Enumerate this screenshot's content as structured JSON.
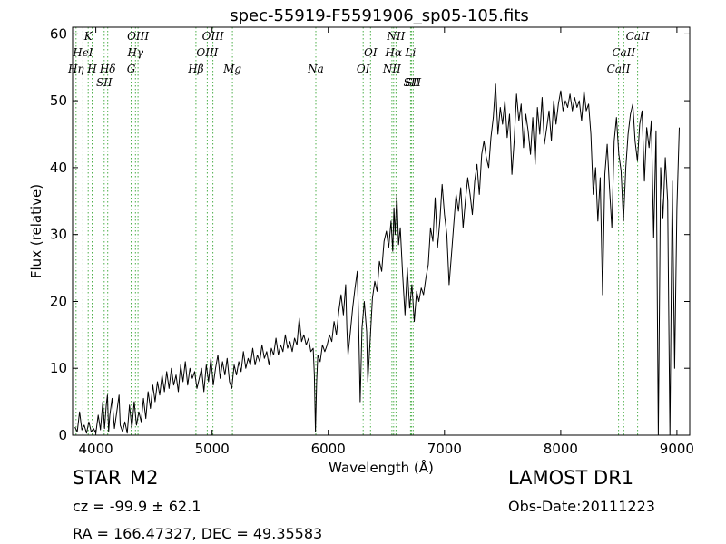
{
  "chart_data": {
    "type": "line",
    "title": "spec-55919-F5591906_sp05-105.fits",
    "xlabel": "Wavelength (Å)",
    "ylabel": "Flux (relative)",
    "xlim": [
      3800,
      9110
    ],
    "ylim": [
      0,
      61
    ],
    "x_ticks": [
      4000,
      5000,
      6000,
      7000,
      8000,
      9000
    ],
    "y_ticks": [
      0,
      10,
      20,
      30,
      40,
      50,
      60
    ],
    "grid": false,
    "series": [
      {
        "points": [
          [
            3820,
            1.2
          ],
          [
            3840,
            0.5
          ],
          [
            3860,
            3.5
          ],
          [
            3880,
            0.8
          ],
          [
            3900,
            1.5
          ],
          [
            3920,
            0.3
          ],
          [
            3940,
            2.0
          ],
          [
            3960,
            0.5
          ],
          [
            3980,
            1.0
          ],
          [
            4000,
            0.3
          ],
          [
            4020,
            3.0
          ],
          [
            4040,
            0.8
          ],
          [
            4060,
            5.0
          ],
          [
            4075,
            1.0
          ],
          [
            4090,
            4.5
          ],
          [
            4100,
            6.0
          ],
          [
            4110,
            0.5
          ],
          [
            4120,
            3.0
          ],
          [
            4140,
            5.5
          ],
          [
            4160,
            1.0
          ],
          [
            4180,
            3.5
          ],
          [
            4200,
            6.0
          ],
          [
            4210,
            1.5
          ],
          [
            4230,
            0.5
          ],
          [
            4250,
            2.0
          ],
          [
            4270,
            0.3
          ],
          [
            4290,
            4.5
          ],
          [
            4310,
            1.0
          ],
          [
            4330,
            5.0
          ],
          [
            4350,
            1.5
          ],
          [
            4370,
            3.5
          ],
          [
            4390,
            2.0
          ],
          [
            4410,
            5.5
          ],
          [
            4430,
            2.5
          ],
          [
            4450,
            6.5
          ],
          [
            4470,
            4.0
          ],
          [
            4490,
            7.5
          ],
          [
            4510,
            5.0
          ],
          [
            4530,
            8.0
          ],
          [
            4550,
            6.0
          ],
          [
            4570,
            9.0
          ],
          [
            4590,
            6.5
          ],
          [
            4610,
            9.5
          ],
          [
            4630,
            7.0
          ],
          [
            4650,
            10.0
          ],
          [
            4670,
            7.5
          ],
          [
            4690,
            9.0
          ],
          [
            4710,
            6.5
          ],
          [
            4730,
            10.5
          ],
          [
            4750,
            8.0
          ],
          [
            4770,
            11.0
          ],
          [
            4790,
            7.5
          ],
          [
            4810,
            10.0
          ],
          [
            4830,
            8.5
          ],
          [
            4850,
            9.5
          ],
          [
            4870,
            7.0
          ],
          [
            4890,
            8.5
          ],
          [
            4910,
            10.0
          ],
          [
            4930,
            6.5
          ],
          [
            4950,
            10.5
          ],
          [
            4970,
            8.0
          ],
          [
            4990,
            11.5
          ],
          [
            5010,
            7.5
          ],
          [
            5030,
            10.0
          ],
          [
            5050,
            12.0
          ],
          [
            5070,
            8.5
          ],
          [
            5090,
            11.0
          ],
          [
            5110,
            9.0
          ],
          [
            5130,
            11.5
          ],
          [
            5150,
            8.0
          ],
          [
            5170,
            7.0
          ],
          [
            5190,
            10.5
          ],
          [
            5210,
            9.0
          ],
          [
            5230,
            11.0
          ],
          [
            5250,
            9.5
          ],
          [
            5270,
            12.5
          ],
          [
            5290,
            10.0
          ],
          [
            5310,
            11.5
          ],
          [
            5330,
            10.5
          ],
          [
            5350,
            13.0
          ],
          [
            5370,
            10.5
          ],
          [
            5390,
            12.0
          ],
          [
            5410,
            11.0
          ],
          [
            5430,
            13.5
          ],
          [
            5450,
            11.5
          ],
          [
            5470,
            12.5
          ],
          [
            5490,
            10.5
          ],
          [
            5510,
            13.0
          ],
          [
            5530,
            12.0
          ],
          [
            5550,
            14.5
          ],
          [
            5570,
            12.0
          ],
          [
            5590,
            13.5
          ],
          [
            5610,
            12.5
          ],
          [
            5630,
            15.0
          ],
          [
            5650,
            13.0
          ],
          [
            5670,
            14.0
          ],
          [
            5690,
            12.5
          ],
          [
            5710,
            14.5
          ],
          [
            5730,
            13.5
          ],
          [
            5750,
            17.5
          ],
          [
            5770,
            14.0
          ],
          [
            5790,
            15.0
          ],
          [
            5810,
            13.5
          ],
          [
            5830,
            14.5
          ],
          [
            5850,
            12.5
          ],
          [
            5870,
            13.0
          ],
          [
            5880,
            9.0
          ],
          [
            5890,
            0.5
          ],
          [
            5900,
            8.0
          ],
          [
            5910,
            12.0
          ],
          [
            5930,
            11.0
          ],
          [
            5950,
            13.5
          ],
          [
            5970,
            12.5
          ],
          [
            5990,
            13.5
          ],
          [
            6010,
            15.0
          ],
          [
            6030,
            14.0
          ],
          [
            6050,
            17.0
          ],
          [
            6070,
            15.0
          ],
          [
            6090,
            18.5
          ],
          [
            6110,
            21.0
          ],
          [
            6130,
            18.0
          ],
          [
            6150,
            22.5
          ],
          [
            6160,
            16.0
          ],
          [
            6170,
            12.0
          ],
          [
            6190,
            15.5
          ],
          [
            6210,
            19.0
          ],
          [
            6230,
            22.0
          ],
          [
            6250,
            24.5
          ],
          [
            6260,
            18.0
          ],
          [
            6275,
            5.0
          ],
          [
            6290,
            16.0
          ],
          [
            6310,
            20.0
          ],
          [
            6330,
            15.5
          ],
          [
            6340,
            8.0
          ],
          [
            6360,
            14.0
          ],
          [
            6380,
            20.5
          ],
          [
            6400,
            23.0
          ],
          [
            6420,
            21.5
          ],
          [
            6440,
            26.0
          ],
          [
            6460,
            24.5
          ],
          [
            6480,
            29.0
          ],
          [
            6500,
            30.5
          ],
          [
            6520,
            28.0
          ],
          [
            6540,
            32.0
          ],
          [
            6555,
            27.5
          ],
          [
            6565,
            34.0
          ],
          [
            6575,
            30.0
          ],
          [
            6590,
            36.0
          ],
          [
            6605,
            28.5
          ],
          [
            6620,
            31.0
          ],
          [
            6640,
            24.0
          ],
          [
            6660,
            18.0
          ],
          [
            6680,
            25.0
          ],
          [
            6700,
            19.0
          ],
          [
            6720,
            22.5
          ],
          [
            6740,
            17.0
          ],
          [
            6760,
            21.5
          ],
          [
            6780,
            20.0
          ],
          [
            6800,
            22.0
          ],
          [
            6820,
            21.0
          ],
          [
            6840,
            23.5
          ],
          [
            6860,
            25.5
          ],
          [
            6880,
            31.0
          ],
          [
            6900,
            29.0
          ],
          [
            6920,
            35.5
          ],
          [
            6940,
            28.0
          ],
          [
            6960,
            32.0
          ],
          [
            6980,
            37.5
          ],
          [
            7000,
            33.0
          ],
          [
            7020,
            30.0
          ],
          [
            7040,
            22.5
          ],
          [
            7060,
            27.0
          ],
          [
            7080,
            31.5
          ],
          [
            7100,
            36.0
          ],
          [
            7120,
            33.5
          ],
          [
            7140,
            37.0
          ],
          [
            7160,
            31.0
          ],
          [
            7180,
            35.0
          ],
          [
            7200,
            38.5
          ],
          [
            7220,
            36.0
          ],
          [
            7240,
            33.0
          ],
          [
            7260,
            38.0
          ],
          [
            7280,
            40.5
          ],
          [
            7300,
            36.0
          ],
          [
            7320,
            42.0
          ],
          [
            7340,
            44.0
          ],
          [
            7360,
            41.5
          ],
          [
            7380,
            40.0
          ],
          [
            7400,
            44.5
          ],
          [
            7420,
            47.5
          ],
          [
            7440,
            52.5
          ],
          [
            7460,
            45.0
          ],
          [
            7480,
            49.0
          ],
          [
            7500,
            46.5
          ],
          [
            7520,
            50.0
          ],
          [
            7540,
            44.5
          ],
          [
            7560,
            48.0
          ],
          [
            7580,
            39.0
          ],
          [
            7600,
            44.0
          ],
          [
            7620,
            51.0
          ],
          [
            7640,
            47.0
          ],
          [
            7660,
            49.5
          ],
          [
            7680,
            43.0
          ],
          [
            7700,
            48.0
          ],
          [
            7720,
            45.5
          ],
          [
            7740,
            42.0
          ],
          [
            7760,
            47.5
          ],
          [
            7780,
            40.5
          ],
          [
            7800,
            49.0
          ],
          [
            7820,
            45.0
          ],
          [
            7840,
            50.5
          ],
          [
            7860,
            43.5
          ],
          [
            7880,
            46.0
          ],
          [
            7900,
            48.5
          ],
          [
            7920,
            44.0
          ],
          [
            7940,
            50.0
          ],
          [
            7960,
            46.5
          ],
          [
            7980,
            49.5
          ],
          [
            8000,
            51.5
          ],
          [
            8020,
            48.5
          ],
          [
            8040,
            50.0
          ],
          [
            8060,
            49.0
          ],
          [
            8080,
            51.0
          ],
          [
            8100,
            48.5
          ],
          [
            8120,
            50.5
          ],
          [
            8140,
            49.0
          ],
          [
            8160,
            50.0
          ],
          [
            8180,
            47.0
          ],
          [
            8200,
            51.5
          ],
          [
            8220,
            48.5
          ],
          [
            8240,
            49.5
          ],
          [
            8260,
            45.0
          ],
          [
            8280,
            36.0
          ],
          [
            8300,
            40.0
          ],
          [
            8320,
            32.0
          ],
          [
            8340,
            38.5
          ],
          [
            8360,
            21.0
          ],
          [
            8380,
            39.0
          ],
          [
            8400,
            43.5
          ],
          [
            8420,
            37.0
          ],
          [
            8440,
            31.0
          ],
          [
            8460,
            44.0
          ],
          [
            8480,
            47.5
          ],
          [
            8500,
            42.0
          ],
          [
            8520,
            39.5
          ],
          [
            8540,
            32.0
          ],
          [
            8560,
            40.0
          ],
          [
            8580,
            45.0
          ],
          [
            8600,
            48.0
          ],
          [
            8620,
            49.5
          ],
          [
            8640,
            44.0
          ],
          [
            8660,
            41.0
          ],
          [
            8680,
            46.5
          ],
          [
            8700,
            48.5
          ],
          [
            8720,
            38.0
          ],
          [
            8740,
            46.0
          ],
          [
            8760,
            43.0
          ],
          [
            8780,
            47.0
          ],
          [
            8800,
            29.5
          ],
          [
            8820,
            45.5
          ],
          [
            8840,
            0.0
          ],
          [
            8860,
            40.0
          ],
          [
            8880,
            32.5
          ],
          [
            8900,
            41.5
          ],
          [
            8920,
            35.0
          ],
          [
            8940,
            0.0
          ],
          [
            8960,
            38.0
          ],
          [
            8980,
            10.0
          ],
          [
            9000,
            34.0
          ],
          [
            9020,
            46.0
          ]
        ]
      }
    ],
    "lines": [
      {
        "wave": 3830,
        "labels": [
          "Hη"
        ]
      },
      {
        "wave": 3889,
        "labels": [
          "HeI"
        ]
      },
      {
        "wave": 3934,
        "labels": [
          "K"
        ]
      },
      {
        "wave": 3968,
        "labels": [
          "H"
        ]
      },
      {
        "wave": 4072,
        "labels": [
          "SII"
        ]
      },
      {
        "wave": 4102,
        "labels": [
          "Hδ"
        ]
      },
      {
        "wave": 4304,
        "labels": [
          "G"
        ]
      },
      {
        "wave": 4341,
        "labels": [
          "Hγ"
        ]
      },
      {
        "wave": 4363,
        "labels": [
          "OIII"
        ]
      },
      {
        "wave": 4861,
        "labels": [
          "Hβ"
        ]
      },
      {
        "wave": 4959,
        "labels": [
          "OIII"
        ]
      },
      {
        "wave": 5007,
        "labels": [
          "OIII"
        ]
      },
      {
        "wave": 5175,
        "labels": [
          "Mg"
        ]
      },
      {
        "wave": 5893,
        "labels": [
          "Na"
        ]
      },
      {
        "wave": 6300,
        "labels": [
          "OI"
        ]
      },
      {
        "wave": 6364,
        "labels": [
          "OI"
        ]
      },
      {
        "wave": 6548,
        "labels": [
          "NII"
        ]
      },
      {
        "wave": 6563,
        "labels": [
          "Hα"
        ]
      },
      {
        "wave": 6583,
        "labels": [
          "NII"
        ]
      },
      {
        "wave": 6708,
        "labels": [
          "Li"
        ]
      },
      {
        "wave": 6716,
        "labels": [
          "SII"
        ]
      },
      {
        "wave": 6731,
        "labels": [
          "SII"
        ]
      },
      {
        "wave": 8498,
        "labels": [
          "CaII"
        ]
      },
      {
        "wave": 8542,
        "labels": [
          "CaII"
        ]
      },
      {
        "wave": 8662,
        "labels": [
          "CaII"
        ]
      }
    ],
    "line_color": "#000000",
    "marker_color": "#4daf4a"
  },
  "info": {
    "class_label": "STAR",
    "subclass_label": "M2",
    "survey": "LAMOST DR1",
    "redshift": "cz = -99.9 ± 62.1",
    "obs_date": "Obs-Date:20111223",
    "coords": "RA = 166.47327, DEC = 49.35583"
  }
}
